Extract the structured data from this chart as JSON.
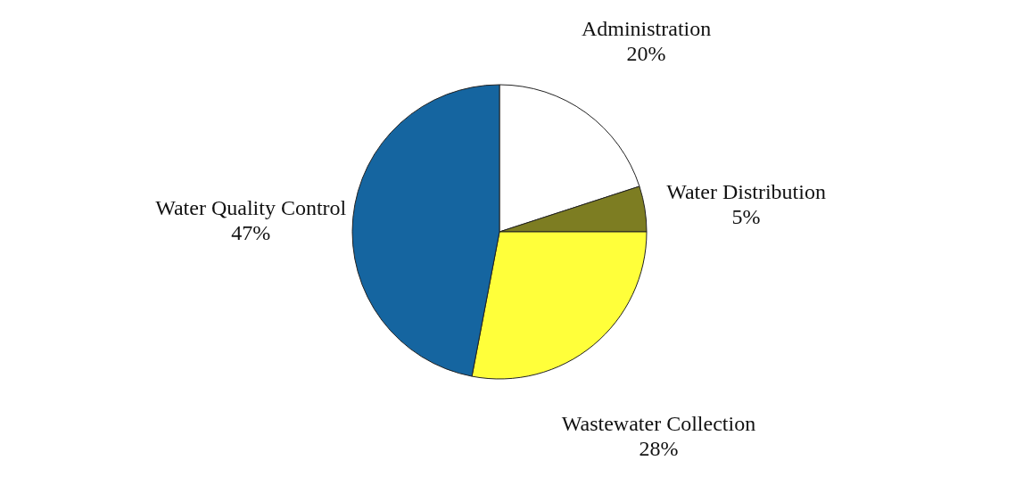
{
  "chart_data": {
    "type": "pie",
    "categories": [
      "Administration",
      "Water Distribution",
      "Wastewater Collection",
      "Water Quality Control"
    ],
    "values": [
      20,
      5,
      28,
      47
    ],
    "value_labels": [
      "20%",
      "5%",
      "28%",
      "47%"
    ],
    "colors": [
      "#ffffff",
      "#7d7d22",
      "#ffff3a",
      "#1565a0"
    ],
    "legend": false
  }
}
